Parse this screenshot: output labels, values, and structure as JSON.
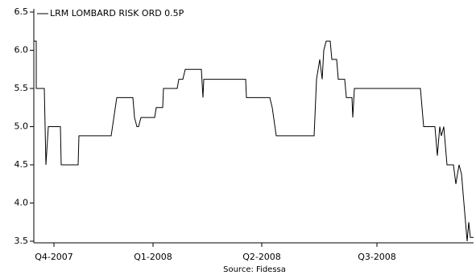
{
  "chart_data": {
    "type": "line",
    "series": [
      {
        "name": "LRM LOMBARD RISK ORD 0.5P",
        "color": "#000000",
        "x": [
          0,
          3,
          3,
          13,
          15,
          18,
          33,
          34,
          55,
          56,
          96,
          103,
          123,
          125,
          128,
          130,
          133,
          150,
          152,
          160,
          161,
          178,
          180,
          185,
          188,
          208,
          210,
          211,
          263,
          264,
          293,
          296,
          301,
          348,
          351,
          355,
          358,
          360,
          363,
          368,
          370,
          376,
          378,
          386,
          388,
          395,
          396,
          398,
          480,
          482,
          484,
          498,
          501,
          504,
          506,
          509,
          511,
          513,
          521,
          524,
          526,
          528,
          531,
          534,
          538,
          540,
          542,
          546
        ],
        "values": [
          6.12,
          6.12,
          5.5,
          5.5,
          4.5,
          5.0,
          5.0,
          4.5,
          4.5,
          4.88,
          4.88,
          5.38,
          5.38,
          5.12,
          5.0,
          5.0,
          5.12,
          5.12,
          5.25,
          5.25,
          5.5,
          5.5,
          5.62,
          5.62,
          5.75,
          5.75,
          5.38,
          5.62,
          5.62,
          5.38,
          5.38,
          5.25,
          4.88,
          4.88,
          5.62,
          5.88,
          5.62,
          6.0,
          6.12,
          6.12,
          5.88,
          5.88,
          5.62,
          5.62,
          5.38,
          5.38,
          5.12,
          5.5,
          5.5,
          5.25,
          5.0,
          5.0,
          4.62,
          5.0,
          4.88,
          5.0,
          4.75,
          4.5,
          4.5,
          4.25,
          4.38,
          4.5,
          4.38,
          4.0,
          3.5,
          3.75,
          3.55,
          3.55
        ]
      }
    ],
    "xlim": [
      0,
      546
    ],
    "xticks": [
      {
        "value": 25,
        "label": "Q4-2007"
      },
      {
        "value": 148,
        "label": "Q1-2008"
      },
      {
        "value": 283,
        "label": "Q2-2008"
      },
      {
        "value": 426,
        "label": "Q3-2008"
      }
    ],
    "ylim": [
      3.5,
      6.5
    ],
    "yticks": [
      3.5,
      {
        "value": 4,
        "label": "4.0"
      },
      4.5,
      {
        "value": 5,
        "label": "5.0"
      },
      5.5,
      {
        "value": 6,
        "label": "6.0"
      },
      6.5
    ],
    "source": "Source: Fidessa",
    "legend": "top-left"
  }
}
